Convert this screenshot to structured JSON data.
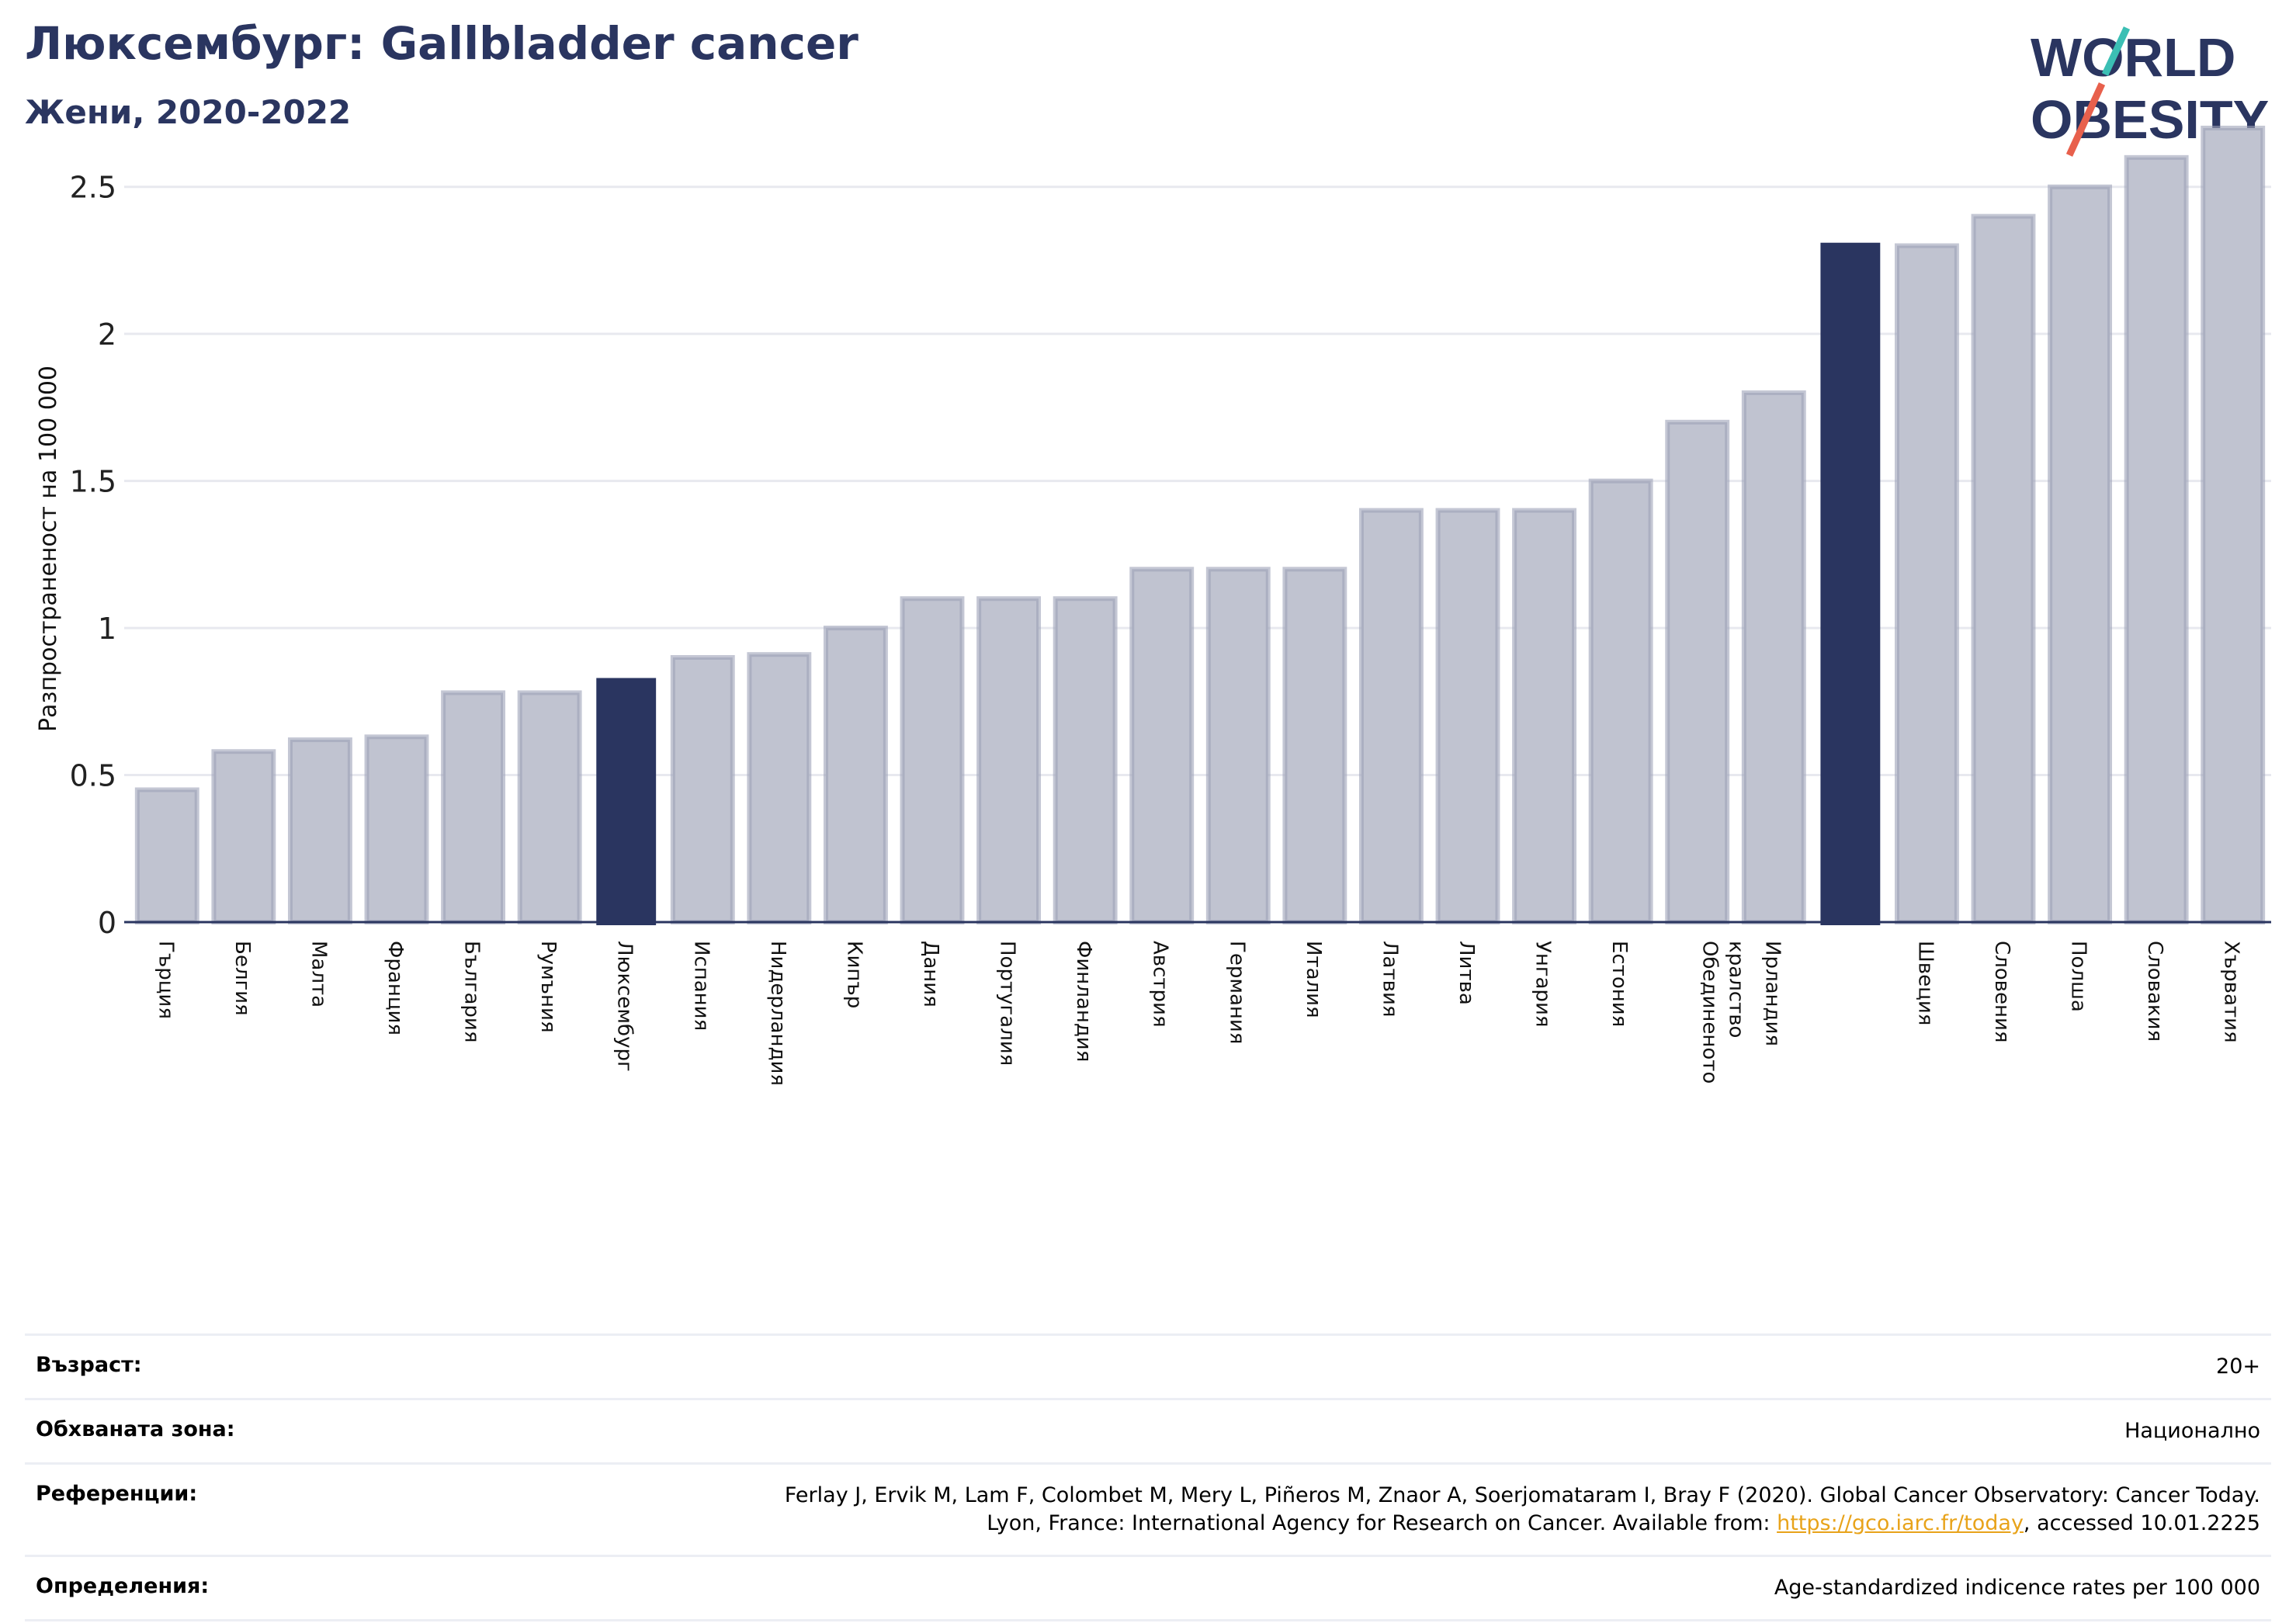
{
  "header": {
    "title": "Люксембург: Gallbladder cancer",
    "subtitle": "Жени, 2020-2022"
  },
  "logo": {
    "line1": "WORLD",
    "line2": "OBESITY",
    "accent_colors": [
      "#3bbfb4",
      "#e8604c"
    ]
  },
  "colors": {
    "bar": "#c0c3d0",
    "bar_stroke": "#9ca1b8",
    "highlight": "#2a3560",
    "axis": "#2a3560",
    "grid": "#e8e9ef"
  },
  "chart_data": {
    "type": "bar",
    "ylabel": "Разпространеност  на 100 000",
    "ylim": [
      0,
      2.75
    ],
    "yticks": [
      0,
      0.5,
      1,
      1.5,
      2,
      2.5
    ],
    "ytick_labels": [
      "0",
      "0.5",
      "1",
      "1.5",
      "2",
      "2.5"
    ],
    "grid": true,
    "categories": [
      "Гърция",
      "Белгия",
      "Малта",
      "Франция",
      "България",
      "Румъния",
      "Люксембург",
      "Испания",
      "Нидерландия",
      "Кипър",
      "Дания",
      "Португалия",
      "Финландия",
      "Австрия",
      "Германия",
      "Италия",
      "Латвия",
      "Литва",
      "Унгария",
      "Естония",
      "Обединеното кралство",
      "Ирландия",
      "",
      "Швеция",
      "Словения",
      "Полша",
      "Словакия",
      "Хърватия"
    ],
    "values": [
      0.45,
      0.58,
      0.62,
      0.63,
      0.78,
      0.78,
      0.83,
      0.9,
      0.91,
      1.0,
      1.1,
      1.1,
      1.1,
      1.2,
      1.2,
      1.2,
      1.4,
      1.4,
      1.4,
      1.5,
      1.7,
      1.8,
      2.31,
      2.3,
      2.4,
      2.5,
      2.6,
      2.7
    ],
    "highlighted": [
      6,
      22
    ]
  },
  "info": {
    "rows": [
      {
        "label": "Възраст:",
        "value": "20+"
      },
      {
        "label": "Обхваната зона:",
        "value": "Национално"
      },
      {
        "label": "Референции:",
        "value_line1": "Ferlay J, Ervik M, Lam F, Colombet M, Mery L, Piñeros M, Znaor A, Soerjomataram I, Bray F (2020). Global Cancer Observatory: Cancer Today.",
        "value_line2_pre": "Lyon, France: International Agency for Research on Cancer. Available from: ",
        "link": "https://gco.iarc.fr/today",
        "value_line2_post": ", accessed 10.01.2225"
      },
      {
        "label": "Определения:",
        "value": "Age-standardized indicence rates per 100 000"
      }
    ]
  }
}
